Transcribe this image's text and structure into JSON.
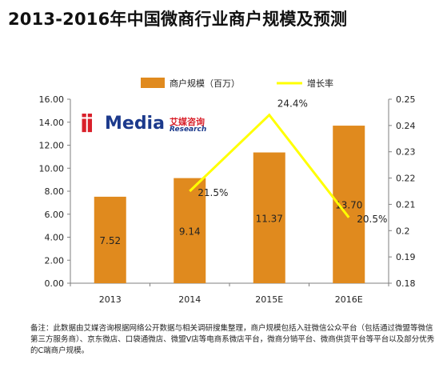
{
  "title": "2013-2016年中国微商行业商户规模及预测",
  "logo": {
    "mark": "ii",
    "name": "Media",
    "cn": "艾媒咨询",
    "en": "Research"
  },
  "note": "备注：此数据由艾媒咨询根据网络公开数据与相关调研搜集整理，商户规模包括入驻微信公众平台（包括通过微盟等微信第三方服务商）、京东微店、口袋通微店、微盟V店等电商系微店平台，微商分销平台、微商供货平台等平台以及部分优秀的C端商户规模。",
  "chart_data": {
    "type": "bar",
    "categories": [
      "2013",
      "2014",
      "2015E",
      "2016E"
    ],
    "series": [
      {
        "name": "商户规模（百万）",
        "type": "bar",
        "axis": "left",
        "color": "#e08a1e",
        "values": [
          7.52,
          9.14,
          11.37,
          13.7
        ],
        "labels": [
          "7.52",
          "9.14",
          "11.37",
          "13.70"
        ]
      },
      {
        "name": "增长率",
        "type": "line",
        "axis": "right",
        "color": "#ffff00",
        "values": [
          null,
          0.215,
          0.244,
          0.205
        ],
        "labels": [
          "",
          "21.5%",
          "24.4%",
          "20.5%"
        ]
      }
    ],
    "left_axis": {
      "min": 0,
      "max": 16,
      "ticks": [
        "0.00",
        "2.00",
        "4.00",
        "6.00",
        "8.00",
        "10.00",
        "12.00",
        "14.00",
        "16.00"
      ]
    },
    "right_axis": {
      "min": 0.18,
      "max": 0.25,
      "ticks": [
        "0.18",
        "0.19",
        "0.2",
        "0.21",
        "0.22",
        "0.23",
        "0.24",
        "0.25"
      ]
    },
    "legend_position": "top-center",
    "grid": false
  }
}
